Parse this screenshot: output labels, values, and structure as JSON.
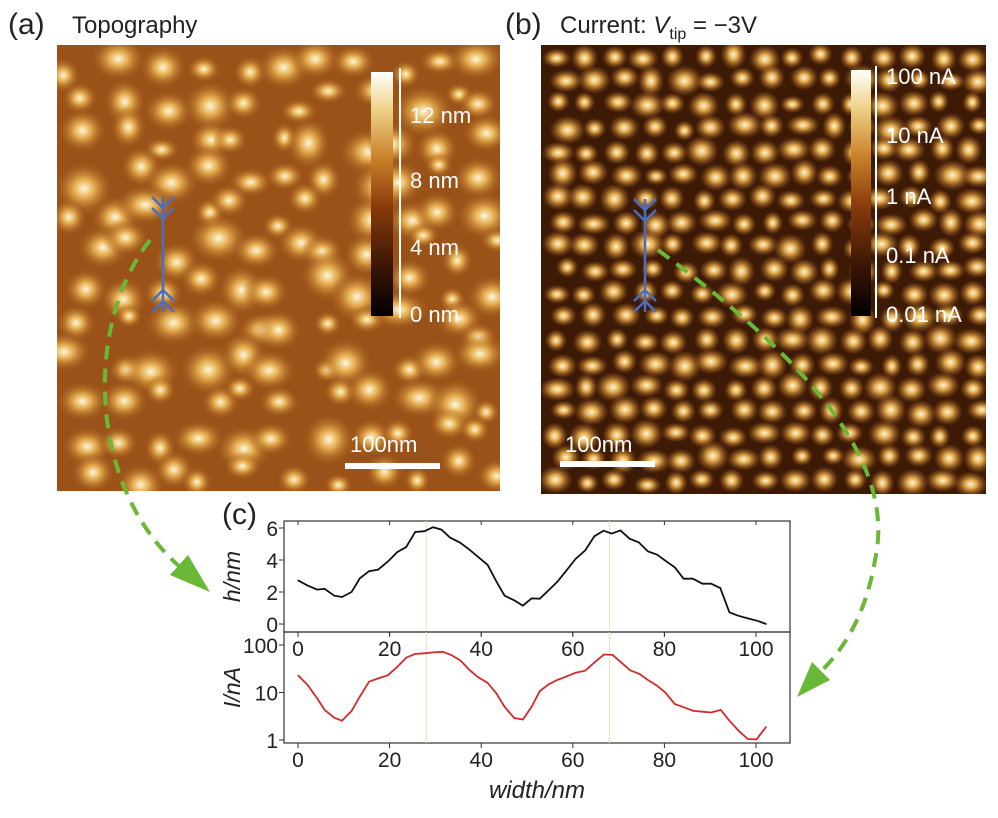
{
  "panels": {
    "a": {
      "label": "(a)",
      "title": "Topography",
      "scalebar": "100nm",
      "colorbar_ticks": [
        "12 nm",
        "8 nm",
        "4 nm",
        "0 nm"
      ]
    },
    "b": {
      "label": "(b)",
      "title_prefix": "Current: ",
      "title_var": "V",
      "title_sub": "tip",
      "title_suffix": " = −3V",
      "scalebar": "100nm",
      "colorbar_ticks": [
        "100 nA",
        "10 nA",
        "1 nA",
        "0.1 nA",
        "0.01 nA"
      ]
    },
    "c": {
      "label": "(c)"
    }
  },
  "colors": {
    "height_line": "#111111",
    "current_line": "#d42a2a",
    "arrow": "#6ab838",
    "profile_marker": "#4a6fc0",
    "guide": "#e8e0c0"
  },
  "chart_data": [
    {
      "type": "line",
      "ylabel": "h/nm",
      "xlabel": "",
      "xlim": [
        -3,
        108
      ],
      "ylim": [
        -0.5,
        6.4
      ],
      "xticks": [
        0,
        20,
        40,
        60,
        80,
        100
      ],
      "yticks": [
        0,
        2,
        4,
        6
      ],
      "x": [
        0,
        2.1,
        4.2,
        5.8,
        7.9,
        9.6,
        11.7,
        13.5,
        15.5,
        17.5,
        19.6,
        21.7,
        23.6,
        25.6,
        27.6,
        29.5,
        31.3,
        33.2,
        35.3,
        37.2,
        39.3,
        41.4,
        43.3,
        45.1,
        47.2,
        49.1,
        51,
        52.8,
        54.7,
        56.6,
        58.5,
        60.6,
        62.7,
        64.7,
        66.7,
        68.5,
        70.4,
        72.4,
        74.4,
        76.4,
        78.4,
        80.4,
        82.3,
        84.2,
        86.2,
        88.3,
        90.2,
        92.2,
        94.2,
        96.1,
        98.2,
        100.3,
        102.2
      ],
      "y": [
        2.73,
        2.4,
        2.15,
        2.2,
        1.77,
        1.69,
        2.0,
        2.85,
        3.3,
        3.4,
        3.9,
        4.5,
        4.8,
        5.75,
        5.8,
        6.05,
        5.9,
        5.4,
        5.1,
        4.7,
        4.2,
        3.7,
        2.67,
        1.77,
        1.48,
        1.15,
        1.6,
        1.58,
        2.1,
        2.63,
        3.3,
        4.06,
        4.6,
        5.48,
        5.83,
        5.65,
        5.85,
        5.33,
        5.1,
        4.54,
        4.33,
        3.92,
        3.54,
        2.83,
        2.83,
        2.52,
        2.52,
        2.25,
        0.73,
        0.52,
        0.35,
        0.2,
        0.0
      ],
      "guides_x": [
        28,
        68
      ]
    },
    {
      "type": "line",
      "ylabel": "I/nA",
      "xlabel": "width/nm",
      "yscale": "log",
      "xlim": [
        -3,
        108
      ],
      "ylim": [
        0.85,
        120
      ],
      "xticks": [
        0,
        20,
        40,
        60,
        80,
        100
      ],
      "yticks": [
        1,
        10,
        100
      ],
      "x": [
        0,
        2.1,
        4.2,
        5.8,
        7.9,
        9.6,
        11.7,
        13.5,
        15.5,
        17.5,
        19.6,
        21.7,
        23.6,
        25.6,
        27.6,
        29.5,
        31.6,
        33.4,
        35.5,
        37.4,
        39.3,
        41.4,
        43.3,
        45.1,
        47.2,
        49.1,
        51,
        52.8,
        54.7,
        56.6,
        58.5,
        60.6,
        62.7,
        64.7,
        66.8,
        68.7,
        70.6,
        72.6,
        74.6,
        76.4,
        78.4,
        80.2,
        82.3,
        84.2,
        86.3,
        88.3,
        90.2,
        92.3,
        94.2,
        96.2,
        98.2,
        100.1,
        102.2
      ],
      "y": [
        23,
        14.4,
        7.5,
        4.3,
        2.95,
        2.55,
        4.1,
        8.2,
        16.9,
        19.8,
        23,
        35,
        54,
        65,
        67,
        70,
        72,
        62,
        47,
        30,
        21,
        16,
        9.6,
        5.0,
        2.9,
        2.7,
        5.0,
        10.7,
        14.8,
        18.3,
        21.5,
        26,
        28.8,
        42.6,
        63,
        62,
        42.6,
        29,
        24.5,
        18.3,
        13.9,
        10,
        5.7,
        4.9,
        4.1,
        3.95,
        3.8,
        4.3,
        2.55,
        1.57,
        1.05,
        1.03,
        1.9
      ],
      "guides_x": [
        28,
        68
      ]
    }
  ]
}
